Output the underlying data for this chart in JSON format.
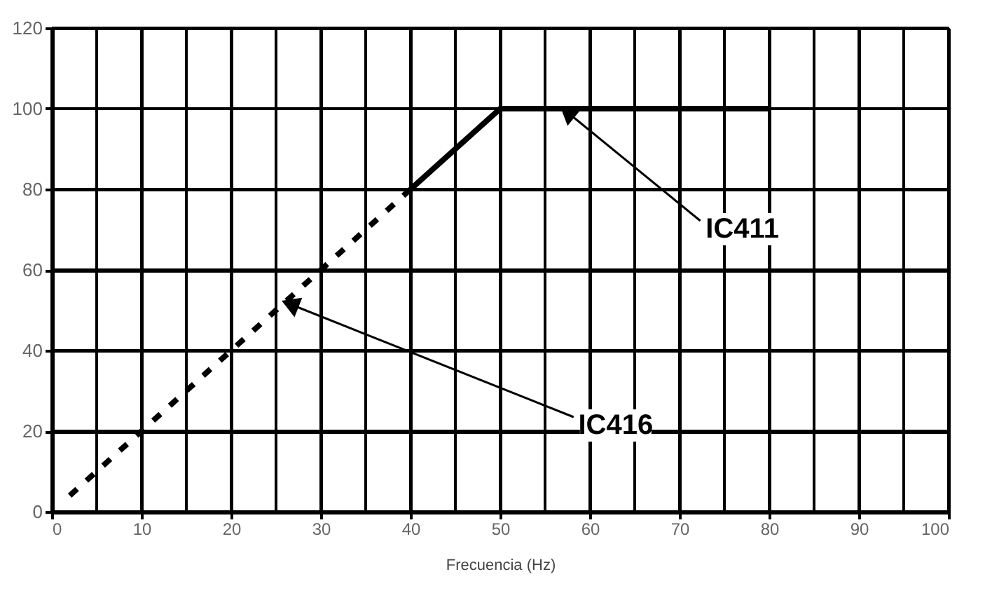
{
  "chart_data": {
    "type": "line",
    "xlabel": "Frecuencia (Hz)",
    "series": [
      {
        "color": "#000000",
        "line_style": "dashed",
        "x": [
          2,
          40
        ],
        "values": [
          4,
          80
        ]
      },
      {
        "color": "#000000",
        "line_style": "solid",
        "x": [
          40,
          50,
          80
        ],
        "values": [
          80,
          100,
          100
        ]
      }
    ],
    "annotations": [
      {
        "text": "IC411",
        "x": 57,
        "y": 100
      },
      {
        "text": "IC416",
        "x": 26,
        "y": 52
      }
    ],
    "xlim": [
      0,
      100
    ],
    "ylim": [
      0,
      120
    ],
    "xticks": [
      0,
      {
        "value": 5,
        "label": null
      },
      10,
      {
        "value": 15,
        "label": null
      },
      20,
      {
        "value": 25,
        "label": null
      },
      30,
      {
        "value": 35,
        "label": null
      },
      40,
      {
        "value": 45,
        "label": null
      },
      50,
      {
        "value": 55,
        "label": null
      },
      60,
      {
        "value": 65,
        "label": null
      },
      70,
      {
        "value": 75,
        "label": null
      },
      80,
      {
        "value": 85,
        "label": null
      },
      90,
      {
        "value": 95,
        "label": null
      },
      100
    ],
    "yticks": [
      0,
      20,
      40,
      60,
      80,
      100,
      120
    ],
    "grid": true,
    "marker": "none"
  }
}
